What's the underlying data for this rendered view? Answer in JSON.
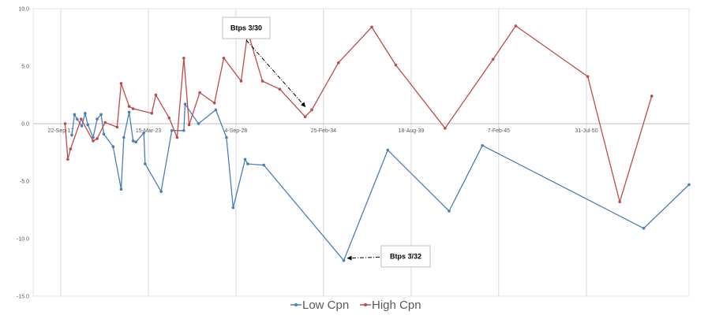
{
  "chart_data": {
    "type": "line",
    "title": "",
    "xlabel": "",
    "ylabel": "",
    "x_tick_labels": [
      "22-Sep-17",
      "15-Mar-23",
      "4-Sep-28",
      "25-Feb-34",
      "18-Aug-39",
      "7-Feb-45",
      "31-Jul-50"
    ],
    "x_range": [
      "2016-01-01",
      "2057-01-01"
    ],
    "y_tick_labels": [
      "10.0",
      "5.0",
      "0.0",
      "-5.0",
      "-10.0",
      "-15.0"
    ],
    "ylim": [
      -15,
      10
    ],
    "grid": "vertical",
    "legend_position": "bottom",
    "colors": {
      "low": "#4a7ebb",
      "high": "#be4b48",
      "grid": "#d9d9d9",
      "axis": "#bfbfbf"
    },
    "series": [
      {
        "name": "Low Cpn",
        "points": [
          [
            "2018-06-01",
            -1.0
          ],
          [
            "2018-08-01",
            0.8
          ],
          [
            "2018-10-01",
            0.4
          ],
          [
            "2019-01-15",
            -0.2
          ],
          [
            "2019-04-01",
            0.9
          ],
          [
            "2019-06-01",
            -0.1
          ],
          [
            "2019-10-01",
            -1.2
          ],
          [
            "2020-01-01",
            0.4
          ],
          [
            "2020-04-01",
            0.8
          ],
          [
            "2020-06-01",
            -0.9
          ],
          [
            "2021-01-01",
            -2.0
          ],
          [
            "2021-07-01",
            -5.7
          ],
          [
            "2021-09-01",
            -1.2
          ],
          [
            "2022-01-01",
            1.0
          ],
          [
            "2022-04-01",
            -1.5
          ],
          [
            "2022-06-01",
            -1.6
          ],
          [
            "2022-12-01",
            -0.8
          ],
          [
            "2023-01-01",
            -3.5
          ],
          [
            "2024-01-01",
            -5.9
          ],
          [
            "2024-09-01",
            -0.6
          ],
          [
            "2025-06-01",
            -0.6
          ],
          [
            "2025-07-01",
            1.7
          ],
          [
            "2026-05-01",
            0.0
          ],
          [
            "2027-06-01",
            1.2
          ],
          [
            "2028-02-01",
            -1.2
          ],
          [
            "2028-07-01",
            -7.3
          ],
          [
            "2029-04-01",
            -3.1
          ],
          [
            "2029-06-01",
            -3.5
          ],
          [
            "2030-06-01",
            -3.6
          ],
          [
            "2035-06-01",
            -11.9
          ],
          [
            "2038-03-01",
            -2.3
          ],
          [
            "2042-01-01",
            -7.6
          ],
          [
            "2044-02-01",
            -1.9
          ],
          [
            "2054-03-01",
            -9.1
          ],
          [
            "2057-01-01",
            -5.3
          ]
        ]
      },
      {
        "name": "High Cpn",
        "points": [
          [
            "2018-01-01",
            0.0
          ],
          [
            "2018-03-01",
            -3.1
          ],
          [
            "2018-05-01",
            -2.2
          ],
          [
            "2019-01-01",
            0.4
          ],
          [
            "2019-10-01",
            -1.5
          ],
          [
            "2020-01-01",
            -1.3
          ],
          [
            "2020-07-01",
            0.1
          ],
          [
            "2021-04-01",
            -0.3
          ],
          [
            "2021-07-01",
            3.5
          ],
          [
            "2022-01-01",
            1.5
          ],
          [
            "2022-04-01",
            1.3
          ],
          [
            "2023-06-01",
            0.9
          ],
          [
            "2023-09-01",
            2.5
          ],
          [
            "2024-07-01",
            0.5
          ],
          [
            "2025-01-01",
            -1.2
          ],
          [
            "2025-06-01",
            5.7
          ],
          [
            "2025-10-01",
            -0.1
          ],
          [
            "2026-06-01",
            2.7
          ],
          [
            "2027-05-01",
            1.8
          ],
          [
            "2027-12-01",
            5.7
          ],
          [
            "2029-01-01",
            3.7
          ],
          [
            "2029-06-01",
            8.0
          ],
          [
            "2030-05-01",
            3.7
          ],
          [
            "2031-06-01",
            3.0
          ],
          [
            "2033-01-01",
            0.6
          ],
          [
            "2033-06-01",
            1.2
          ],
          [
            "2035-02-01",
            5.3
          ],
          [
            "2037-03-01",
            8.4
          ],
          [
            "2038-09-01",
            5.1
          ],
          [
            "2041-10-01",
            -0.4
          ],
          [
            "2044-10-01",
            5.6
          ],
          [
            "2046-03-01",
            8.5
          ],
          [
            "2050-09-01",
            4.1
          ],
          [
            "2052-09-01",
            -6.8
          ],
          [
            "2054-09-01",
            2.4
          ]
        ]
      }
    ],
    "annotations": [
      {
        "label": "Btps 3/30",
        "x": "2033-01-01",
        "y": 0.6
      },
      {
        "label": "Btps 3/32",
        "x": "2035-06-01",
        "y": -11.9
      }
    ]
  }
}
